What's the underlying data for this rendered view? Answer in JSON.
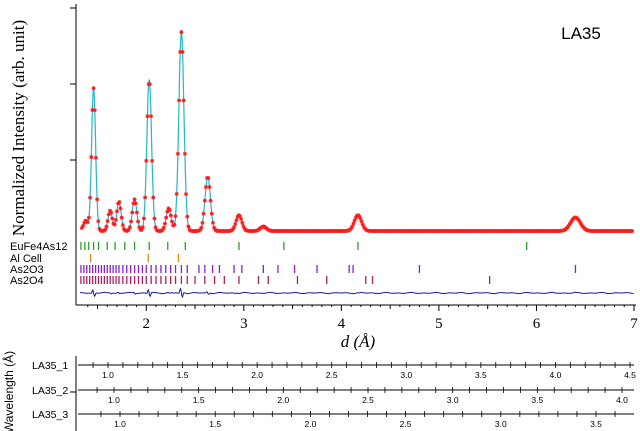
{
  "chart_data": {
    "type": "scatter",
    "annotation": "LA35",
    "ylabel": "Normalized Intensity (arb. unit)",
    "xlabel": "d (Å)",
    "xlim": [
      1.3,
      7.0
    ],
    "x_ticks": [
      "2",
      "3",
      "4",
      "5",
      "6",
      "7"
    ],
    "observed_color": "#ff1a1a",
    "calculated_color": "#22b8c8",
    "difference_color": "#1a1aa0",
    "peaks": [
      {
        "d": 1.38,
        "height": 0.04
      },
      {
        "d": 1.46,
        "height": 0.63
      },
      {
        "d": 1.63,
        "height": 0.09
      },
      {
        "d": 1.72,
        "height": 0.13
      },
      {
        "d": 1.88,
        "height": 0.14
      },
      {
        "d": 2.03,
        "height": 0.67
      },
      {
        "d": 2.23,
        "height": 0.1
      },
      {
        "d": 2.36,
        "height": 0.88
      },
      {
        "d": 2.63,
        "height": 0.24
      },
      {
        "d": 2.95,
        "height": 0.07
      },
      {
        "d": 3.2,
        "height": 0.02
      },
      {
        "d": 4.17,
        "height": 0.07
      },
      {
        "d": 6.4,
        "height": 0.06
      }
    ],
    "phases": [
      {
        "name": "EuFe4As12",
        "color": "#2ca02c",
        "positions": [
          1.33,
          1.37,
          1.41,
          1.46,
          1.51,
          1.6,
          1.68,
          1.78,
          1.88,
          2.03,
          2.22,
          2.4,
          2.95,
          3.41,
          4.17,
          5.9
        ]
      },
      {
        "name": "Al Cell",
        "color": "#e08a00",
        "positions": [
          1.43,
          2.02,
          2.33
        ]
      },
      {
        "name": "As2O3",
        "color": "#8a1fd6",
        "positions": [
          1.33,
          1.36,
          1.39,
          1.42,
          1.45,
          1.48,
          1.51,
          1.54,
          1.57,
          1.6,
          1.63,
          1.66,
          1.69,
          1.72,
          1.76,
          1.8,
          1.84,
          1.88,
          1.92,
          1.96,
          2.0,
          2.05,
          2.1,
          2.15,
          2.2,
          2.25,
          2.3,
          2.36,
          2.42,
          2.54,
          2.6,
          2.68,
          2.75,
          2.9,
          2.98,
          3.2,
          3.35,
          3.52,
          3.75,
          4.08,
          4.12,
          4.8,
          6.4
        ]
      },
      {
        "name": "As2O4",
        "color": "#b01f5a",
        "positions": [
          1.33,
          1.36,
          1.39,
          1.42,
          1.45,
          1.48,
          1.51,
          1.54,
          1.57,
          1.6,
          1.63,
          1.66,
          1.69,
          1.72,
          1.76,
          1.8,
          1.84,
          1.88,
          1.92,
          1.96,
          2.0,
          2.05,
          2.1,
          2.15,
          2.2,
          2.25,
          2.3,
          2.36,
          2.42,
          2.5,
          2.6,
          2.7,
          2.8,
          2.95,
          3.15,
          3.25,
          3.55,
          3.85,
          4.25,
          4.32,
          5.52
        ]
      }
    ],
    "wavelength_axis": {
      "label": "Wavelength (Å)",
      "rows": [
        {
          "name": "LA35_1",
          "ticks": [
            "1.0",
            "1.5",
            "2.0",
            "2.5",
            "3.0",
            "3.5",
            "4.0",
            "4.5"
          ],
          "values": [
            1.0,
            1.5,
            2.0,
            2.5,
            3.0,
            3.5,
            4.0,
            4.5
          ],
          "start_d": 1.3,
          "end_d": 7.0
        },
        {
          "name": "LA35_2",
          "ticks": [
            "1.0",
            "1.5",
            "2.0",
            "2.5",
            "3.0",
            "3.5",
            "4.0"
          ],
          "values": [
            1.0,
            1.5,
            2.0,
            2.5,
            3.0,
            3.5,
            4.0
          ],
          "start_d": 1.3,
          "end_d": 7.0
        },
        {
          "name": "LA35_3",
          "ticks": [
            "1.0",
            "1.5",
            "2.0",
            "2.5",
            "3.0",
            "3.5"
          ],
          "values": [
            1.0,
            1.5,
            2.0,
            2.5,
            3.0,
            3.5
          ],
          "start_d": 1.3,
          "end_d": 7.0
        }
      ]
    }
  }
}
